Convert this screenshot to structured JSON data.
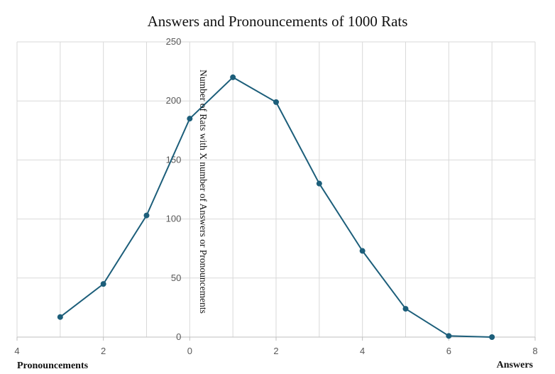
{
  "chart_data": {
    "type": "line",
    "title": "Answers and Pronouncements of 1000 Rats",
    "ylabel": "Number of Rats with X number of Answers or Pronouncements",
    "x_left_label": "Pronouncements",
    "x_right_label": "Answers",
    "xlim": [
      -4,
      8
    ],
    "ylim": [
      0,
      250
    ],
    "x_ticks": [
      -4,
      -2,
      0,
      2,
      4,
      6,
      8
    ],
    "x_tick_labels": [
      "4",
      "2",
      "0",
      "2",
      "4",
      "6",
      "8"
    ],
    "y_ticks": [
      0,
      50,
      100,
      150,
      200,
      250
    ],
    "grid": true,
    "series": [
      {
        "color": "#1c5e7a",
        "x": [
          -3,
          -2,
          -1,
          0,
          1,
          2,
          3,
          4,
          5,
          6,
          7
        ],
        "y": [
          17,
          45,
          103,
          185,
          220,
          199,
          130,
          73,
          24,
          1,
          0
        ]
      }
    ]
  }
}
